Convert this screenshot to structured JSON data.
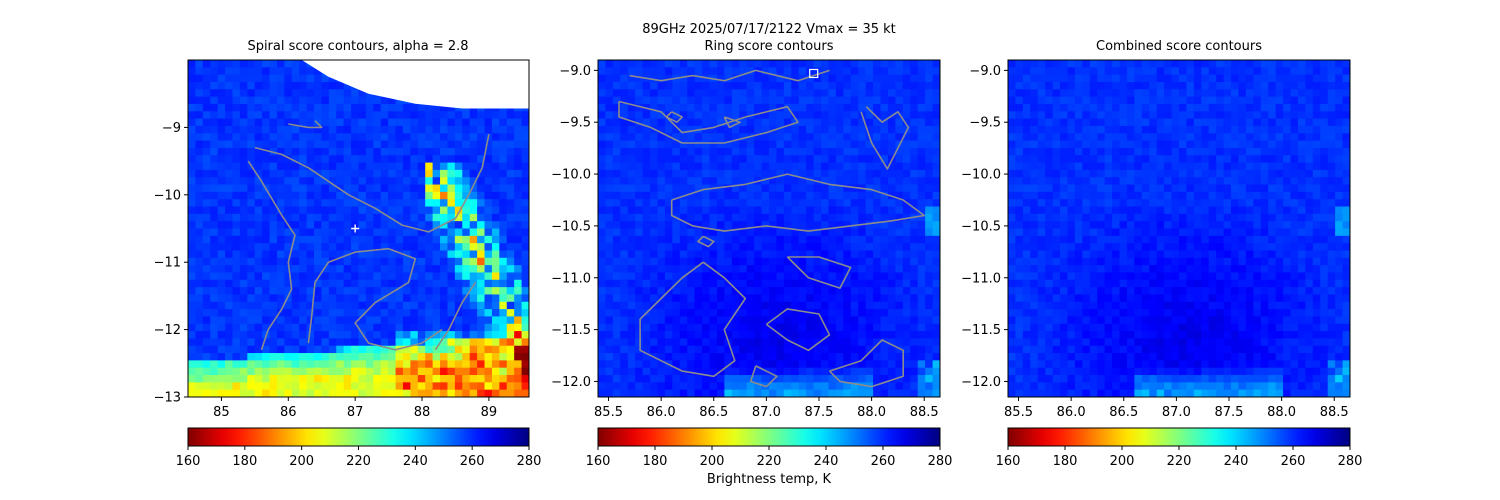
{
  "figure": {
    "suptitle": "89GHz  2025/07/17/2122    Vmax = 35 kt",
    "colorbar_label": "Brightness temp, K"
  },
  "colors": {
    "contour": "#8c8c8c",
    "colormap": "jet_r",
    "marker": "#ffffff"
  },
  "chart_data": [
    {
      "type": "heatmap",
      "title": "Spiral score contours, alpha =  2.8",
      "xlim": [
        84.5,
        89.6
      ],
      "ylim": [
        -13.0,
        -8.0
      ],
      "xticks": [
        85,
        86,
        87,
        88,
        89
      ],
      "xtick_labels": [
        "85",
        "86",
        "87",
        "88",
        "89"
      ],
      "yticks": [
        -9,
        -10,
        -11,
        -12,
        -13
      ],
      "ytick_labels": [
        "−9",
        "−10",
        "−11",
        "−12",
        "−13"
      ],
      "colorbar": {
        "min": 160,
        "max": 280,
        "ticks": [
          160,
          180,
          200,
          220,
          240,
          260,
          280
        ],
        "tick_labels": [
          "160",
          "180",
          "200",
          "220",
          "240",
          "260",
          "280"
        ],
        "cmap": "jet_r"
      },
      "field": "swath",
      "marker": {
        "symbol": "+",
        "x": 87.0,
        "y": -10.5
      },
      "contours": [
        [
          [
            85.5,
            -9.3
          ],
          [
            85.9,
            -9.4
          ],
          [
            86.3,
            -9.6
          ],
          [
            86.6,
            -9.8
          ],
          [
            86.9,
            -10.0
          ],
          [
            87.3,
            -10.2
          ],
          [
            87.7,
            -10.45
          ],
          [
            88.1,
            -10.55
          ],
          [
            88.5,
            -10.35
          ],
          [
            88.7,
            -10.0
          ],
          [
            88.9,
            -9.6
          ],
          [
            89.0,
            -9.1
          ]
        ],
        [
          [
            85.4,
            -9.5
          ],
          [
            85.6,
            -9.8
          ],
          [
            85.9,
            -10.3
          ],
          [
            86.1,
            -10.6
          ],
          [
            86.0,
            -11.0
          ],
          [
            86.05,
            -11.4
          ],
          [
            85.9,
            -11.7
          ],
          [
            85.7,
            -12.0
          ],
          [
            85.6,
            -12.3
          ]
        ],
        [
          [
            86.3,
            -12.2
          ],
          [
            86.35,
            -11.8
          ],
          [
            86.4,
            -11.3
          ],
          [
            86.6,
            -11.0
          ],
          [
            87.0,
            -10.85
          ],
          [
            87.5,
            -10.8
          ],
          [
            87.9,
            -10.95
          ],
          [
            87.8,
            -11.3
          ],
          [
            87.3,
            -11.6
          ],
          [
            87.0,
            -11.9
          ],
          [
            87.2,
            -12.2
          ],
          [
            87.6,
            -12.3
          ],
          [
            88.0,
            -12.2
          ],
          [
            88.3,
            -12.0
          ]
        ],
        [
          [
            86.0,
            -8.95
          ],
          [
            86.3,
            -9.0
          ],
          [
            86.5,
            -9.0
          ],
          [
            86.4,
            -8.9
          ]
        ],
        [
          [
            88.2,
            -12.3
          ],
          [
            88.4,
            -12.0
          ],
          [
            88.6,
            -11.6
          ],
          [
            88.8,
            -11.3
          ]
        ]
      ]
    },
    {
      "type": "heatmap",
      "title": "Ring score contours",
      "xlim": [
        85.4,
        88.65
      ],
      "ylim": [
        -12.15,
        -8.9
      ],
      "xticks": [
        85.5,
        86.0,
        86.5,
        87.0,
        87.5,
        88.0,
        88.5
      ],
      "xtick_labels": [
        "85.5",
        "86.0",
        "86.5",
        "87.0",
        "87.5",
        "88.0",
        "88.5"
      ],
      "yticks": [
        -9.0,
        -9.5,
        -10.0,
        -10.5,
        -11.0,
        -11.5,
        -12.0
      ],
      "ytick_labels": [
        "−9.0",
        "−9.5",
        "−10.0",
        "−10.5",
        "−11.0",
        "−11.5",
        "−12.0"
      ],
      "colorbar": {
        "min": 160,
        "max": 280,
        "ticks": [
          160,
          180,
          200,
          220,
          240,
          260,
          280
        ],
        "tick_labels": [
          "160",
          "180",
          "200",
          "220",
          "240",
          "260",
          "280"
        ],
        "cmap": "jet_r"
      },
      "field": "core",
      "marker": {
        "symbol": "square",
        "x": 87.45,
        "y": -9.03
      },
      "contours": [
        [
          [
            85.7,
            -9.05
          ],
          [
            86.0,
            -9.1
          ],
          [
            86.3,
            -9.05
          ],
          [
            86.6,
            -9.1
          ],
          [
            86.9,
            -9.0
          ],
          [
            87.3,
            -9.1
          ],
          [
            87.6,
            -9.0
          ]
        ],
        [
          [
            85.6,
            -9.3
          ],
          [
            86.0,
            -9.4
          ],
          [
            86.2,
            -9.6
          ],
          [
            86.5,
            -9.55
          ],
          [
            86.8,
            -9.45
          ],
          [
            87.2,
            -9.35
          ],
          [
            87.3,
            -9.5
          ],
          [
            87.0,
            -9.6
          ],
          [
            86.6,
            -9.7
          ],
          [
            86.2,
            -9.7
          ],
          [
            85.9,
            -9.55
          ],
          [
            85.6,
            -9.45
          ],
          [
            85.6,
            -9.3
          ]
        ],
        [
          [
            86.1,
            -9.4
          ],
          [
            86.2,
            -9.45
          ],
          [
            86.15,
            -9.5
          ],
          [
            86.05,
            -9.45
          ],
          [
            86.1,
            -9.4
          ]
        ],
        [
          [
            86.6,
            -9.45
          ],
          [
            86.75,
            -9.5
          ],
          [
            86.65,
            -9.55
          ],
          [
            86.6,
            -9.45
          ]
        ],
        [
          [
            87.9,
            -9.4
          ],
          [
            88.0,
            -9.7
          ],
          [
            88.15,
            -9.95
          ],
          [
            88.25,
            -9.75
          ],
          [
            88.35,
            -9.55
          ],
          [
            88.25,
            -9.4
          ],
          [
            88.1,
            -9.5
          ],
          [
            87.95,
            -9.35
          ]
        ],
        [
          [
            86.1,
            -10.25
          ],
          [
            86.4,
            -10.15
          ],
          [
            86.8,
            -10.1
          ],
          [
            87.2,
            -10.0
          ],
          [
            87.6,
            -10.1
          ],
          [
            88.0,
            -10.15
          ],
          [
            88.3,
            -10.25
          ],
          [
            88.5,
            -10.4
          ],
          [
            88.2,
            -10.45
          ],
          [
            87.8,
            -10.5
          ],
          [
            87.4,
            -10.55
          ],
          [
            87.0,
            -10.5
          ],
          [
            86.6,
            -10.55
          ],
          [
            86.3,
            -10.5
          ],
          [
            86.1,
            -10.4
          ],
          [
            86.1,
            -10.25
          ]
        ],
        [
          [
            86.4,
            -10.85
          ],
          [
            86.2,
            -11.0
          ],
          [
            86.0,
            -11.2
          ],
          [
            85.8,
            -11.4
          ],
          [
            85.8,
            -11.7
          ],
          [
            86.0,
            -11.8
          ],
          [
            86.2,
            -11.9
          ],
          [
            86.5,
            -11.95
          ],
          [
            86.7,
            -11.8
          ],
          [
            86.6,
            -11.5
          ],
          [
            86.8,
            -11.2
          ],
          [
            86.6,
            -11.0
          ],
          [
            86.4,
            -10.85
          ]
        ],
        [
          [
            87.0,
            -11.45
          ],
          [
            87.2,
            -11.6
          ],
          [
            87.4,
            -11.7
          ],
          [
            87.6,
            -11.55
          ],
          [
            87.5,
            -11.35
          ],
          [
            87.2,
            -11.3
          ],
          [
            87.0,
            -11.45
          ]
        ],
        [
          [
            87.2,
            -10.8
          ],
          [
            87.5,
            -10.8
          ],
          [
            87.8,
            -10.9
          ],
          [
            87.7,
            -11.1
          ],
          [
            87.4,
            -11.0
          ],
          [
            87.2,
            -10.8
          ]
        ],
        [
          [
            87.6,
            -11.9
          ],
          [
            87.9,
            -11.8
          ],
          [
            88.1,
            -11.6
          ],
          [
            88.3,
            -11.7
          ],
          [
            88.3,
            -11.95
          ],
          [
            88.0,
            -12.05
          ],
          [
            87.7,
            -12.0
          ],
          [
            87.6,
            -11.9
          ]
        ],
        [
          [
            86.4,
            -10.6
          ],
          [
            86.5,
            -10.65
          ],
          [
            86.45,
            -10.7
          ],
          [
            86.35,
            -10.65
          ],
          [
            86.4,
            -10.6
          ]
        ],
        [
          [
            86.9,
            -11.85
          ],
          [
            87.1,
            -11.95
          ],
          [
            87.0,
            -12.05
          ],
          [
            86.85,
            -12.0
          ],
          [
            86.9,
            -11.85
          ]
        ]
      ]
    },
    {
      "type": "heatmap",
      "title": "Combined score contours",
      "xlim": [
        85.4,
        88.65
      ],
      "ylim": [
        -12.15,
        -8.9
      ],
      "xticks": [
        85.5,
        86.0,
        86.5,
        87.0,
        87.5,
        88.0,
        88.5
      ],
      "xtick_labels": [
        "85.5",
        "86.0",
        "86.5",
        "87.0",
        "87.5",
        "88.0",
        "88.5"
      ],
      "yticks": [
        -9.0,
        -9.5,
        -10.0,
        -10.5,
        -11.0,
        -11.5,
        -12.0
      ],
      "ytick_labels": [
        "−9.0",
        "−9.5",
        "−10.0",
        "−10.5",
        "−11.0",
        "−11.5",
        "−12.0"
      ],
      "colorbar": {
        "min": 160,
        "max": 280,
        "ticks": [
          160,
          180,
          200,
          220,
          240,
          260,
          280
        ],
        "tick_labels": [
          "160",
          "180",
          "200",
          "220",
          "240",
          "260",
          "280"
        ],
        "cmap": "jet_r"
      },
      "field": "core",
      "contours": []
    }
  ]
}
